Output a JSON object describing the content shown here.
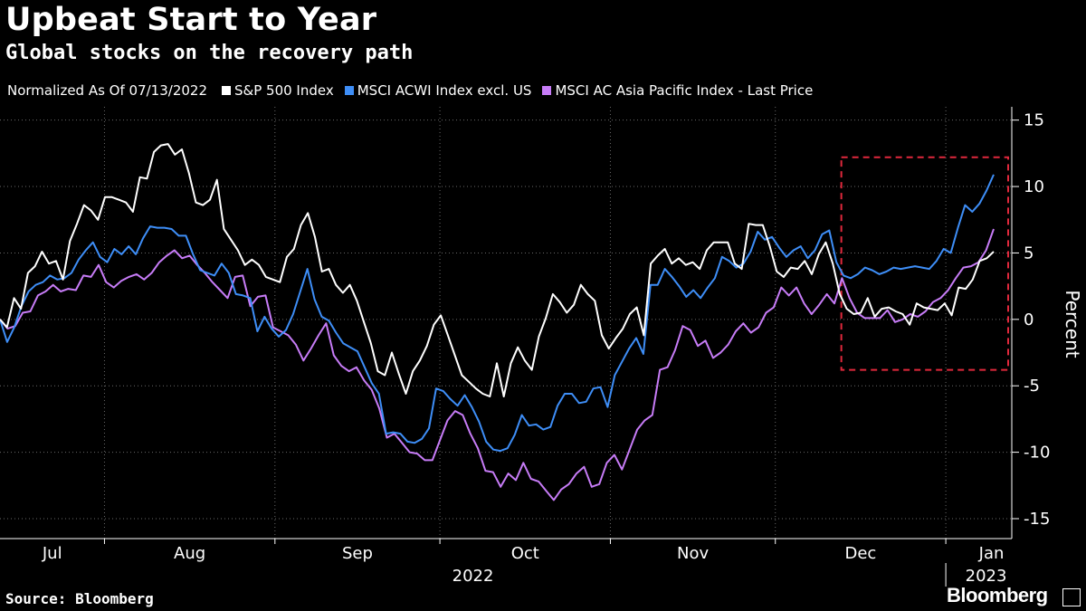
{
  "header": {
    "title": "Upbeat Start to Year",
    "subtitle": "Global stocks on the recovery path"
  },
  "legend": {
    "note": "Normalized As Of 07/13/2022"
  },
  "footer": {
    "source": "Source: Bloomberg",
    "brand": "Bloomberg"
  },
  "chart_data": {
    "type": "line",
    "title": "Upbeat Start to Year",
    "subtitle": "Global stocks on the recovery path",
    "ylabel": "Percent",
    "ylim": [
      -16.5,
      16
    ],
    "yticks": [
      15,
      10,
      5,
      0,
      -5,
      -10,
      -15
    ],
    "x_start": "2022-07-13",
    "x_end": "2023-01-13",
    "month_labels": [
      "Jul",
      "Aug",
      "Sep",
      "Oct",
      "Nov",
      "Dec",
      "Jan"
    ],
    "year_labels": [
      "2022",
      "2023"
    ],
    "grid": true,
    "legend_position": "top",
    "highlight_box": {
      "x_from": "2022-12-13",
      "x_to": "2023-01-13",
      "y_from": -3.8,
      "y_to": 12.2,
      "color": "#e0283c"
    },
    "series": [
      {
        "name": "S&P 500 Index",
        "color": "#ffffff",
        "values": [
          0,
          -0.6,
          1.6,
          0.8,
          3.5,
          4.0,
          5.1,
          4.2,
          4.4,
          3.0,
          5.9,
          7.2,
          8.6,
          8.2,
          7.5,
          9.2,
          9.2,
          9.0,
          8.8,
          8.1,
          10.7,
          10.6,
          12.6,
          13.1,
          13.2,
          12.4,
          12.8,
          11.0,
          8.8,
          8.6,
          9.0,
          10.5,
          6.8,
          6.0,
          5.2,
          4.1,
          4.5,
          4.1,
          3.2,
          3.0,
          2.8,
          4.7,
          5.3,
          7.1,
          8.0,
          6.2,
          3.6,
          3.8,
          2.6,
          2.0,
          2.6,
          1.4,
          -0.2,
          -1.8,
          -3.9,
          -4.2,
          -2.5,
          -4.1,
          -5.6,
          -3.9,
          -3.1,
          -2.0,
          -0.4,
          0.3,
          -1.2,
          -2.7,
          -4.2,
          -4.7,
          -5.2,
          -5.6,
          -5.8,
          -3.3,
          -5.8,
          -3.3,
          -2.1,
          -3.1,
          -3.8,
          -1.3,
          0.1,
          1.9,
          1.3,
          0.5,
          1.1,
          2.6,
          1.9,
          1.4,
          -1.2,
          -2.2,
          -1.4,
          -0.7,
          0.4,
          0.9,
          -1.2,
          4.2,
          4.8,
          5.3,
          4.2,
          4.6,
          4.1,
          4.3,
          3.8,
          5.2,
          5.8,
          5.8,
          5.8,
          4.2,
          3.8,
          7.2,
          7.1,
          7.1,
          5.5,
          3.6,
          3.2,
          3.9,
          3.8,
          4.4,
          3.4,
          4.9,
          5.8,
          4.2,
          1.9,
          0.8,
          0.4,
          0.5,
          1.6,
          0.2,
          0.8,
          0.9,
          0.6,
          0.4,
          -0.4,
          1.2,
          0.9,
          0.8,
          0.7,
          1.2,
          0.3,
          2.4,
          2.3,
          3.0,
          4.4,
          4.6,
          5.1
        ]
      },
      {
        "name": "MSCI ACWI Index excl. US",
        "color": "#3e8ef7",
        "values": [
          0,
          -1.7,
          -0.6,
          1.0,
          2.1,
          2.6,
          2.8,
          3.3,
          3.0,
          3.1,
          3.5,
          4.5,
          5.2,
          5.8,
          4.7,
          4.3,
          5.3,
          4.9,
          5.5,
          4.9,
          6.1,
          7.0,
          6.9,
          6.9,
          6.8,
          6.3,
          6.3,
          4.9,
          3.7,
          3.5,
          3.3,
          4.2,
          3.5,
          1.9,
          1.8,
          1.6,
          -0.9,
          0.2,
          -0.7,
          -1.3,
          -0.8,
          0.4,
          2.1,
          3.8,
          1.5,
          0.2,
          -0.1,
          -1.0,
          -1.8,
          -2.1,
          -2.4,
          -3.6,
          -4.8,
          -5.6,
          -8.6,
          -8.5,
          -8.6,
          -9.2,
          -9.3,
          -9.0,
          -8.2,
          -5.2,
          -5.4,
          -6.0,
          -6.5,
          -5.7,
          -6.6,
          -7.7,
          -9.2,
          -9.8,
          -9.9,
          -9.7,
          -8.7,
          -7.2,
          -8.0,
          -7.9,
          -8.3,
          -8.1,
          -6.5,
          -5.6,
          -5.6,
          -6.3,
          -6.2,
          -5.2,
          -5.1,
          -6.6,
          -4.2,
          -3.2,
          -2.2,
          -1.4,
          -2.6,
          2.6,
          2.6,
          3.8,
          3.2,
          2.5,
          1.7,
          2.2,
          1.6,
          2.4,
          3.1,
          4.7,
          4.4,
          3.9,
          4.2,
          5.1,
          6.6,
          6.0,
          6.2,
          5.4,
          4.7,
          5.2,
          5.5,
          4.6,
          5.2,
          6.4,
          6.7,
          4.3,
          3.3,
          3.1,
          3.4,
          3.9,
          3.7,
          3.4,
          3.6,
          3.9,
          3.8,
          3.9,
          4.0,
          3.9,
          3.8,
          4.4,
          5.3,
          5.0,
          6.9,
          8.6,
          8.1,
          8.7,
          9.7,
          10.9
        ]
      },
      {
        "name": "MSCI AC Asia Pacific Index - Last Price",
        "color": "#c77cf7",
        "values": [
          0,
          -0.7,
          -0.5,
          0.5,
          0.6,
          1.8,
          2.1,
          2.6,
          2.1,
          2.3,
          2.2,
          3.3,
          3.2,
          4.1,
          2.8,
          2.4,
          2.9,
          3.2,
          3.4,
          3.0,
          3.5,
          4.3,
          4.8,
          5.2,
          4.6,
          4.8,
          4.1,
          3.5,
          2.8,
          2.2,
          1.6,
          3.2,
          3.3,
          1.0,
          1.7,
          1.8,
          -0.6,
          -0.9,
          -1.2,
          -1.9,
          -3.1,
          -2.2,
          -1.2,
          -0.3,
          -2.7,
          -3.5,
          -3.9,
          -3.6,
          -4.6,
          -5.3,
          -6.7,
          -8.9,
          -8.6,
          -9.3,
          -10.0,
          -10.1,
          -10.6,
          -10.6,
          -9.1,
          -7.6,
          -6.9,
          -7.2,
          -8.6,
          -9.7,
          -11.4,
          -11.5,
          -12.6,
          -11.6,
          -12.1,
          -10.8,
          -12.0,
          -12.2,
          -12.9,
          -13.6,
          -12.8,
          -12.4,
          -11.6,
          -11.1,
          -12.6,
          -12.4,
          -10.8,
          -10.2,
          -11.3,
          -9.8,
          -8.3,
          -7.6,
          -7.2,
          -3.8,
          -3.6,
          -2.3,
          -0.5,
          -0.8,
          -2.0,
          -1.6,
          -2.9,
          -2.5,
          -1.9,
          -0.9,
          -0.3,
          -1.0,
          -0.6,
          0.5,
          0.9,
          2.4,
          1.8,
          2.4,
          1.2,
          0.4,
          1.1,
          1.9,
          1.2,
          3.1,
          1.6,
          0.5,
          0.1,
          0.1,
          0.1,
          0.7,
          -0.2,
          0.0,
          0.4,
          0.2,
          0.6,
          1.3,
          1.6,
          2.2,
          3.1,
          3.9,
          4.0,
          4.3,
          5.2,
          6.8
        ]
      }
    ]
  }
}
